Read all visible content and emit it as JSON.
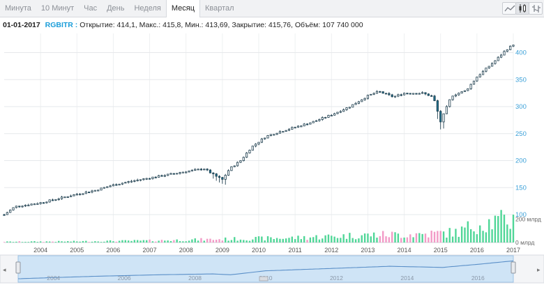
{
  "tabs": [
    {
      "label": "Минута"
    },
    {
      "label": "10 Минут"
    },
    {
      "label": "Час"
    },
    {
      "label": "День"
    },
    {
      "label": "Неделя"
    },
    {
      "label": "Месяц",
      "active": true
    },
    {
      "label": "Квартал"
    }
  ],
  "toolbar": {
    "buttons": [
      {
        "name": "line-chart-button",
        "icon": "line-chart-icon",
        "active": false
      },
      {
        "name": "candle-chart-button",
        "icon": "candlestick-icon",
        "active": true
      },
      {
        "name": "ohlc-chart-button",
        "icon": "ohlc-bars-icon",
        "active": false
      }
    ]
  },
  "legend": {
    "date": "01-01-2017",
    "ticker": "RGBITR :",
    "open_label": "Открытие:",
    "open": "414,1",
    "high_label": "Макс.:",
    "high": "415,8",
    "low_label": "Мин.:",
    "low": "413,69",
    "close_label": "Закрытие:",
    "close": "415,76",
    "volume_label": "Объём:",
    "volume": "107 740 000"
  },
  "colors": {
    "up_candle": "#ffffff",
    "down_candle": "#1f6f8b",
    "candle_border": "#1f3f4f",
    "volume_up": "#4fd697",
    "volume_down": "#f29ac6",
    "axis_text": "#3aa0d8",
    "navigator_fill": "#cfe4f6",
    "navigator_line": "#5a8fc8"
  },
  "chart_data": {
    "type": "candlestick",
    "interval": "month",
    "ylim": [
      100,
      420
    ],
    "yticks": [
      "100",
      "150",
      "200",
      "250",
      "300",
      "350",
      "400"
    ],
    "volume_ticks": [
      "0 млрд",
      "200 млрд"
    ],
    "volume_ylim": [
      0,
      320
    ],
    "x_range": [
      2003.0,
      2017.0
    ],
    "xticks": [
      "2004",
      "2005",
      "2006",
      "2007",
      "2008",
      "2009",
      "2010",
      "2011",
      "2012",
      "2013",
      "2014",
      "2015",
      "2016",
      "2017"
    ],
    "anchors": [
      [
        2003.0,
        100
      ],
      [
        2003.3,
        115
      ],
      [
        2004.0,
        122
      ],
      [
        2004.5,
        130
      ],
      [
        2005.0,
        138
      ],
      [
        2005.5,
        145
      ],
      [
        2006.0,
        155
      ],
      [
        2006.5,
        162
      ],
      [
        2007.0,
        168
      ],
      [
        2007.5,
        174
      ],
      [
        2008.0,
        180
      ],
      [
        2008.5,
        185
      ],
      [
        2008.8,
        172
      ],
      [
        2009.0,
        165
      ],
      [
        2009.2,
        185
      ],
      [
        2009.5,
        200
      ],
      [
        2009.8,
        225
      ],
      [
        2010.2,
        245
      ],
      [
        2010.5,
        252
      ],
      [
        2011.0,
        262
      ],
      [
        2011.5,
        272
      ],
      [
        2012.0,
        285
      ],
      [
        2012.5,
        300
      ],
      [
        2013.0,
        320
      ],
      [
        2013.3,
        328
      ],
      [
        2013.7,
        318
      ],
      [
        2014.0,
        325
      ],
      [
        2014.3,
        325
      ],
      [
        2014.5,
        325
      ],
      [
        2014.8,
        318
      ],
      [
        2015.0,
        272
      ],
      [
        2015.3,
        320
      ],
      [
        2015.7,
        330
      ],
      [
        2016.0,
        355
      ],
      [
        2016.5,
        385
      ],
      [
        2016.8,
        405
      ],
      [
        2017.0,
        415
      ]
    ],
    "volume_anchors": [
      [
        2003.0,
        8
      ],
      [
        2005.0,
        12
      ],
      [
        2007.0,
        20
      ],
      [
        2009.0,
        35
      ],
      [
        2011.0,
        50
      ],
      [
        2013.0,
        80
      ],
      [
        2014.5,
        90
      ],
      [
        2015.5,
        110
      ],
      [
        2016.0,
        200
      ],
      [
        2017.0,
        240
      ]
    ]
  },
  "navigator": {
    "labels": [
      "2004",
      "2006",
      "2008",
      "2010",
      "2012",
      "2014",
      "2016"
    ],
    "x_range": [
      2003.0,
      2017.0
    ],
    "anchors": [
      [
        2003.0,
        100
      ],
      [
        2005.0,
        140
      ],
      [
        2007.0,
        170
      ],
      [
        2008.5,
        185
      ],
      [
        2009.0,
        170
      ],
      [
        2010.0,
        240
      ],
      [
        2012.0,
        285
      ],
      [
        2013.5,
        320
      ],
      [
        2015.0,
        300
      ],
      [
        2016.0,
        355
      ],
      [
        2017.0,
        415
      ]
    ]
  }
}
